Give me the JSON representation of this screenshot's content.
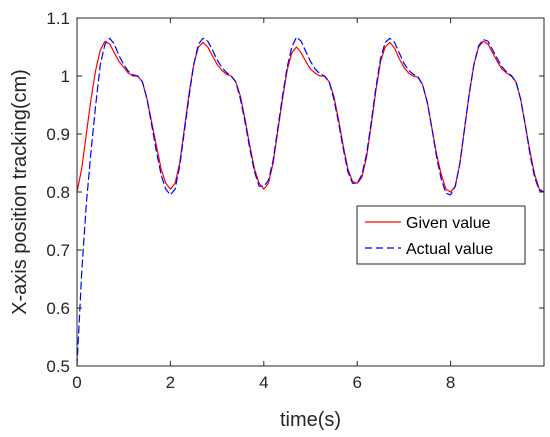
{
  "chart_data": {
    "type": "line",
    "xlabel": "time(s)",
    "ylabel": "X-axis position tracking(cm)",
    "xlim": [
      0,
      10
    ],
    "ylim": [
      0.5,
      1.1
    ],
    "xticks": [
      0,
      2,
      4,
      6,
      8
    ],
    "xtick_labels": [
      "0",
      "2",
      "4",
      "6",
      "8"
    ],
    "yticks": [
      0.5,
      0.6,
      0.7,
      0.8,
      0.9,
      1.0,
      1.1
    ],
    "ytick_labels": [
      "0.5",
      "0.6",
      "0.7",
      "0.8",
      "0.9",
      "1",
      "1.1"
    ],
    "grid": false,
    "legend_position": "center-right",
    "series": [
      {
        "name": "Given value",
        "color": "#ff0000",
        "style": "solid",
        "points": [
          [
            0.0,
            0.8
          ],
          [
            0.1,
            0.84
          ],
          [
            0.2,
            0.9
          ],
          [
            0.3,
            0.96
          ],
          [
            0.4,
            1.01
          ],
          [
            0.5,
            1.045
          ],
          [
            0.6,
            1.06
          ],
          [
            0.7,
            1.055
          ],
          [
            0.8,
            1.04
          ],
          [
            0.9,
            1.025
          ],
          [
            1.0,
            1.015
          ],
          [
            1.1,
            1.005
          ],
          [
            1.2,
            1.0
          ],
          [
            1.3,
            1.0
          ],
          [
            1.4,
            0.99
          ],
          [
            1.5,
            0.96
          ],
          [
            1.6,
            0.92
          ],
          [
            1.7,
            0.88
          ],
          [
            1.8,
            0.84
          ],
          [
            1.9,
            0.815
          ],
          [
            2.0,
            0.805
          ],
          [
            2.1,
            0.815
          ],
          [
            2.2,
            0.85
          ],
          [
            2.3,
            0.91
          ],
          [
            2.4,
            0.97
          ],
          [
            2.5,
            1.02
          ],
          [
            2.6,
            1.05
          ],
          [
            2.7,
            1.058
          ],
          [
            2.8,
            1.05
          ],
          [
            2.9,
            1.035
          ],
          [
            3.0,
            1.02
          ],
          [
            3.1,
            1.01
          ],
          [
            3.2,
            1.003
          ],
          [
            3.3,
            1.0
          ],
          [
            3.4,
            0.99
          ],
          [
            3.5,
            0.965
          ],
          [
            3.6,
            0.925
          ],
          [
            3.7,
            0.88
          ],
          [
            3.8,
            0.84
          ],
          [
            3.9,
            0.815
          ],
          [
            4.0,
            0.805
          ],
          [
            4.1,
            0.815
          ],
          [
            4.2,
            0.85
          ],
          [
            4.3,
            0.905
          ],
          [
            4.4,
            0.96
          ],
          [
            4.5,
            1.01
          ],
          [
            4.6,
            1.04
          ],
          [
            4.7,
            1.05
          ],
          [
            4.8,
            1.04
          ],
          [
            4.9,
            1.025
          ],
          [
            5.0,
            1.012
          ],
          [
            5.1,
            1.005
          ],
          [
            5.2,
            1.0
          ],
          [
            5.3,
            1.0
          ],
          [
            5.4,
            0.99
          ],
          [
            5.5,
            0.965
          ],
          [
            5.6,
            0.925
          ],
          [
            5.7,
            0.88
          ],
          [
            5.8,
            0.84
          ],
          [
            5.9,
            0.818
          ],
          [
            6.0,
            0.815
          ],
          [
            6.1,
            0.825
          ],
          [
            6.2,
            0.86
          ],
          [
            6.3,
            0.915
          ],
          [
            6.4,
            0.975
          ],
          [
            6.5,
            1.025
          ],
          [
            6.6,
            1.05
          ],
          [
            6.7,
            1.058
          ],
          [
            6.8,
            1.048
          ],
          [
            6.9,
            1.03
          ],
          [
            7.0,
            1.015
          ],
          [
            7.1,
            1.005
          ],
          [
            7.2,
            1.0
          ],
          [
            7.3,
            0.998
          ],
          [
            7.4,
            0.985
          ],
          [
            7.5,
            0.955
          ],
          [
            7.6,
            0.91
          ],
          [
            7.7,
            0.865
          ],
          [
            7.8,
            0.83
          ],
          [
            7.9,
            0.805
          ],
          [
            8.0,
            0.8
          ],
          [
            8.1,
            0.81
          ],
          [
            8.2,
            0.85
          ],
          [
            8.3,
            0.91
          ],
          [
            8.4,
            0.97
          ],
          [
            8.5,
            1.02
          ],
          [
            8.6,
            1.05
          ],
          [
            8.7,
            1.06
          ],
          [
            8.8,
            1.055
          ],
          [
            8.9,
            1.04
          ],
          [
            9.0,
            1.025
          ],
          [
            9.1,
            1.012
          ],
          [
            9.2,
            1.005
          ],
          [
            9.3,
            1.0
          ],
          [
            9.4,
            0.99
          ],
          [
            9.5,
            0.96
          ],
          [
            9.6,
            0.915
          ],
          [
            9.7,
            0.87
          ],
          [
            9.8,
            0.83
          ],
          [
            9.9,
            0.805
          ],
          [
            10.0,
            0.8
          ]
        ]
      },
      {
        "name": "Actual value",
        "color": "#0000ff",
        "style": "dashed",
        "points": [
          [
            0.0,
            0.5
          ],
          [
            0.05,
            0.58
          ],
          [
            0.1,
            0.66
          ],
          [
            0.15,
            0.72
          ],
          [
            0.2,
            0.78
          ],
          [
            0.3,
            0.87
          ],
          [
            0.4,
            0.95
          ],
          [
            0.5,
            1.02
          ],
          [
            0.6,
            1.055
          ],
          [
            0.7,
            1.065
          ],
          [
            0.8,
            1.055
          ],
          [
            0.9,
            1.035
          ],
          [
            1.0,
            1.02
          ],
          [
            1.1,
            1.008
          ],
          [
            1.2,
            1.002
          ],
          [
            1.3,
            1.0
          ],
          [
            1.4,
            0.99
          ],
          [
            1.5,
            0.96
          ],
          [
            1.6,
            0.915
          ],
          [
            1.7,
            0.87
          ],
          [
            1.8,
            0.83
          ],
          [
            1.9,
            0.805
          ],
          [
            2.0,
            0.795
          ],
          [
            2.1,
            0.805
          ],
          [
            2.2,
            0.845
          ],
          [
            2.3,
            0.905
          ],
          [
            2.4,
            0.965
          ],
          [
            2.5,
            1.02
          ],
          [
            2.6,
            1.055
          ],
          [
            2.7,
            1.065
          ],
          [
            2.8,
            1.06
          ],
          [
            2.9,
            1.045
          ],
          [
            3.0,
            1.028
          ],
          [
            3.1,
            1.015
          ],
          [
            3.2,
            1.006
          ],
          [
            3.3,
            1.0
          ],
          [
            3.4,
            0.99
          ],
          [
            3.5,
            0.96
          ],
          [
            3.6,
            0.92
          ],
          [
            3.7,
            0.875
          ],
          [
            3.8,
            0.835
          ],
          [
            3.9,
            0.81
          ],
          [
            4.0,
            0.81
          ],
          [
            4.1,
            0.82
          ],
          [
            4.2,
            0.855
          ],
          [
            4.3,
            0.91
          ],
          [
            4.4,
            0.965
          ],
          [
            4.5,
            1.015
          ],
          [
            4.6,
            1.05
          ],
          [
            4.7,
            1.067
          ],
          [
            4.8,
            1.06
          ],
          [
            4.9,
            1.042
          ],
          [
            5.0,
            1.025
          ],
          [
            5.1,
            1.012
          ],
          [
            5.2,
            1.004
          ],
          [
            5.3,
            1.0
          ],
          [
            5.4,
            0.99
          ],
          [
            5.5,
            0.96
          ],
          [
            5.6,
            0.92
          ],
          [
            5.7,
            0.875
          ],
          [
            5.8,
            0.835
          ],
          [
            5.9,
            0.815
          ],
          [
            6.0,
            0.815
          ],
          [
            6.1,
            0.83
          ],
          [
            6.2,
            0.865
          ],
          [
            6.3,
            0.92
          ],
          [
            6.4,
            0.98
          ],
          [
            6.5,
            1.03
          ],
          [
            6.6,
            1.058
          ],
          [
            6.7,
            1.065
          ],
          [
            6.8,
            1.058
          ],
          [
            6.9,
            1.04
          ],
          [
            7.0,
            1.022
          ],
          [
            7.1,
            1.01
          ],
          [
            7.2,
            1.003
          ],
          [
            7.3,
            0.999
          ],
          [
            7.4,
            0.985
          ],
          [
            7.5,
            0.955
          ],
          [
            7.6,
            0.91
          ],
          [
            7.7,
            0.86
          ],
          [
            7.8,
            0.822
          ],
          [
            7.9,
            0.798
          ],
          [
            8.0,
            0.795
          ],
          [
            8.1,
            0.81
          ],
          [
            8.2,
            0.85
          ],
          [
            8.3,
            0.91
          ],
          [
            8.4,
            0.97
          ],
          [
            8.5,
            1.02
          ],
          [
            8.6,
            1.052
          ],
          [
            8.7,
            1.063
          ],
          [
            8.8,
            1.06
          ],
          [
            8.9,
            1.045
          ],
          [
            9.0,
            1.03
          ],
          [
            9.1,
            1.016
          ],
          [
            9.2,
            1.007
          ],
          [
            9.3,
            1.001
          ],
          [
            9.4,
            0.99
          ],
          [
            9.5,
            0.96
          ],
          [
            9.6,
            0.915
          ],
          [
            9.7,
            0.865
          ],
          [
            9.8,
            0.825
          ],
          [
            9.9,
            0.803
          ],
          [
            10.0,
            0.8
          ]
        ]
      }
    ]
  }
}
